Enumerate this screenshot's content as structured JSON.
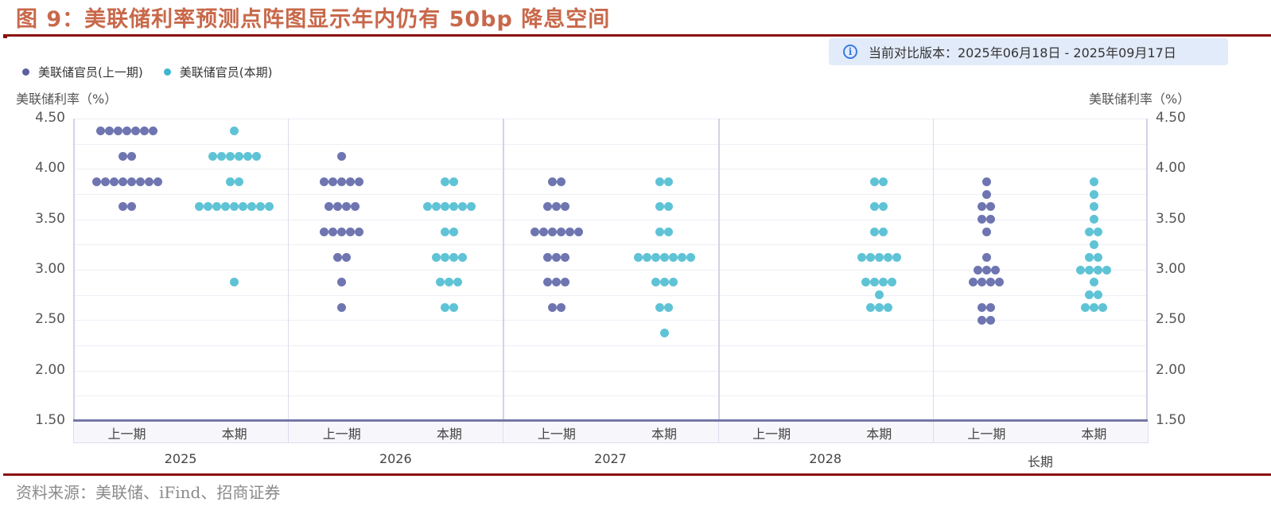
{
  "title": "图 9：美联储利率预测点阵图显示年内仍有 50bp 降息空间",
  "version_notice": {
    "icon": "info-icon",
    "text": "当前对比版本：2025年06月18日 - 2025年09月17日"
  },
  "legend": [
    {
      "label": "美联储官员(上一期)",
      "color": "#6e75b0"
    },
    {
      "label": "美联储官员(本期)",
      "color": "#5fc3d6"
    }
  ],
  "axes": {
    "left_label": "美联储利率（%）",
    "right_label": "美联储利率（%）",
    "y_ticks": [
      "4.50",
      "4.00",
      "3.50",
      "3.00",
      "2.50",
      "2.00",
      "1.50"
    ]
  },
  "source": "资料来源：美联储、iFind、招商证券",
  "chart_data": {
    "type": "scatter",
    "subtype": "dot-plot",
    "title": "图 9：美联储利率预测点阵图显示年内仍有 50bp 降息空间",
    "ylabel": "美联储利率（%）",
    "ylim": [
      1.5,
      4.5
    ],
    "y_ticks": [
      1.5,
      2.0,
      2.5,
      3.0,
      3.5,
      4.0,
      4.5
    ],
    "grid": true,
    "legend_position": "top-left",
    "groups": [
      "2025",
      "2026",
      "2027",
      "2028",
      "长期"
    ],
    "sub_categories": [
      "上一期",
      "本期"
    ],
    "series": [
      {
        "name": "美联储官员(上一期)",
        "color": "#6e75b0",
        "data": {
          "2025": [
            {
              "rate": 4.375,
              "count": 7
            },
            {
              "rate": 4.125,
              "count": 2
            },
            {
              "rate": 3.875,
              "count": 8
            },
            {
              "rate": 3.625,
              "count": 2
            }
          ],
          "2026": [
            {
              "rate": 4.125,
              "count": 1
            },
            {
              "rate": 3.875,
              "count": 5
            },
            {
              "rate": 3.625,
              "count": 4
            },
            {
              "rate": 3.375,
              "count": 5
            },
            {
              "rate": 3.125,
              "count": 2
            },
            {
              "rate": 2.875,
              "count": 1
            },
            {
              "rate": 2.625,
              "count": 1
            }
          ],
          "2027": [
            {
              "rate": 3.875,
              "count": 2
            },
            {
              "rate": 3.625,
              "count": 3
            },
            {
              "rate": 3.375,
              "count": 6
            },
            {
              "rate": 3.125,
              "count": 3
            },
            {
              "rate": 2.875,
              "count": 3
            },
            {
              "rate": 2.625,
              "count": 2
            }
          ],
          "2028": [],
          "长期": [
            {
              "rate": 3.875,
              "count": 1
            },
            {
              "rate": 3.75,
              "count": 1
            },
            {
              "rate": 3.625,
              "count": 2
            },
            {
              "rate": 3.5,
              "count": 2
            },
            {
              "rate": 3.375,
              "count": 1
            },
            {
              "rate": 3.125,
              "count": 1
            },
            {
              "rate": 3.0,
              "count": 3
            },
            {
              "rate": 2.875,
              "count": 4
            },
            {
              "rate": 2.625,
              "count": 2
            },
            {
              "rate": 2.5,
              "count": 2
            }
          ]
        }
      },
      {
        "name": "美联储官员(本期)",
        "color": "#5fc3d6",
        "data": {
          "2025": [
            {
              "rate": 4.375,
              "count": 1
            },
            {
              "rate": 4.125,
              "count": 6
            },
            {
              "rate": 3.875,
              "count": 2
            },
            {
              "rate": 3.625,
              "count": 9
            },
            {
              "rate": 2.875,
              "count": 1
            }
          ],
          "2026": [
            {
              "rate": 3.875,
              "count": 2
            },
            {
              "rate": 3.625,
              "count": 6
            },
            {
              "rate": 3.375,
              "count": 2
            },
            {
              "rate": 3.125,
              "count": 4
            },
            {
              "rate": 2.875,
              "count": 3
            },
            {
              "rate": 2.625,
              "count": 2
            }
          ],
          "2027": [
            {
              "rate": 3.875,
              "count": 2
            },
            {
              "rate": 3.625,
              "count": 2
            },
            {
              "rate": 3.375,
              "count": 2
            },
            {
              "rate": 3.125,
              "count": 7
            },
            {
              "rate": 2.875,
              "count": 3
            },
            {
              "rate": 2.625,
              "count": 2
            },
            {
              "rate": 2.375,
              "count": 1
            }
          ],
          "2028": [
            {
              "rate": 3.875,
              "count": 2
            },
            {
              "rate": 3.625,
              "count": 2
            },
            {
              "rate": 3.375,
              "count": 2
            },
            {
              "rate": 3.125,
              "count": 5
            },
            {
              "rate": 2.875,
              "count": 4
            },
            {
              "rate": 2.75,
              "count": 1
            },
            {
              "rate": 2.625,
              "count": 3
            }
          ],
          "长期": [
            {
              "rate": 3.875,
              "count": 1
            },
            {
              "rate": 3.75,
              "count": 1
            },
            {
              "rate": 3.625,
              "count": 1
            },
            {
              "rate": 3.5,
              "count": 1
            },
            {
              "rate": 3.375,
              "count": 2
            },
            {
              "rate": 3.25,
              "count": 1
            },
            {
              "rate": 3.125,
              "count": 2
            },
            {
              "rate": 3.0,
              "count": 4
            },
            {
              "rate": 2.875,
              "count": 1
            },
            {
              "rate": 2.75,
              "count": 2
            },
            {
              "rate": 2.625,
              "count": 3
            }
          ]
        }
      }
    ]
  }
}
